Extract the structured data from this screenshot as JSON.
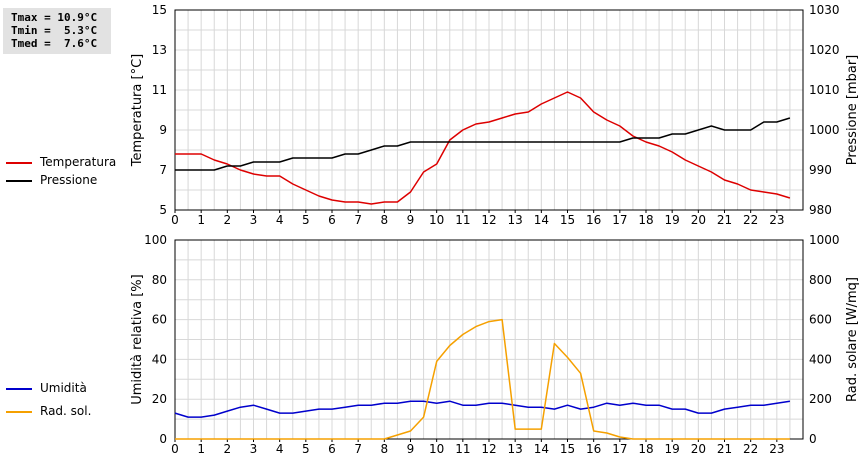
{
  "stats": {
    "tmax": "Tmax = 10.9°C",
    "tmin": "Tmin =  5.3°C",
    "tmed": "Tmed =  7.6°C"
  },
  "legend_top": [
    {
      "label": "Temperatura",
      "color": "#dd0000"
    },
    {
      "label": "Pressione",
      "color": "#000000"
    }
  ],
  "legend_bottom": [
    {
      "label": "Umidità",
      "color": "#0000cc"
    },
    {
      "label": "Rad. sol.",
      "color": "#f5a000"
    }
  ],
  "chart_data": [
    {
      "type": "line",
      "xlim": [
        0,
        24
      ],
      "xticks": [
        "0",
        "1",
        "2",
        "3",
        "4",
        "5",
        "6",
        "7",
        "8",
        "9",
        "10",
        "11",
        "12",
        "13",
        "14",
        "15",
        "16",
        "17",
        "18",
        "19",
        "20",
        "21",
        "22",
        "23"
      ],
      "ylabel": "Temperatura [°C]",
      "ylim": [
        5,
        15
      ],
      "yticks": [
        5,
        7,
        9,
        11,
        13,
        15
      ],
      "y2label": "Pressione [mbar]",
      "y2lim": [
        980,
        1030
      ],
      "y2ticks": [
        980,
        990,
        1000,
        1010,
        1020,
        1030
      ],
      "grid": true,
      "series": [
        {
          "name": "Temperatura",
          "axis": "left",
          "color": "#dd0000",
          "x": [
            0,
            0.5,
            1,
            1.5,
            2,
            2.5,
            3,
            3.5,
            4,
            4.5,
            5,
            5.5,
            6,
            6.5,
            7,
            7.5,
            8,
            8.5,
            9,
            9.5,
            10,
            10.5,
            11,
            11.5,
            12,
            12.5,
            13,
            13.5,
            14,
            14.5,
            15,
            15.5,
            16,
            16.5,
            17,
            17.5,
            18,
            18.5,
            19,
            19.5,
            20,
            20.5,
            21,
            21.5,
            22,
            22.5,
            23,
            23.5
          ],
          "values": [
            7.8,
            7.8,
            7.8,
            7.5,
            7.3,
            7.0,
            6.8,
            6.7,
            6.7,
            6.3,
            6.0,
            5.7,
            5.5,
            5.4,
            5.4,
            5.3,
            5.4,
            5.4,
            5.9,
            6.9,
            7.3,
            8.5,
            9.0,
            9.3,
            9.4,
            9.6,
            9.8,
            9.9,
            10.3,
            10.6,
            10.9,
            10.6,
            9.9,
            9.5,
            9.2,
            8.7,
            8.4,
            8.2,
            7.9,
            7.5,
            7.2,
            6.9,
            6.5,
            6.3,
            6.0,
            5.9,
            5.8,
            5.6
          ]
        },
        {
          "name": "Pressione",
          "axis": "right",
          "color": "#000000",
          "x": [
            0,
            0.5,
            1,
            1.5,
            2,
            2.5,
            3,
            3.5,
            4,
            4.5,
            5,
            5.5,
            6,
            6.5,
            7,
            7.5,
            8,
            8.5,
            9,
            9.5,
            10,
            10.5,
            11,
            11.5,
            12,
            12.5,
            13,
            13.5,
            14,
            14.5,
            15,
            15.5,
            16,
            16.5,
            17,
            17.5,
            18,
            18.5,
            19,
            19.5,
            20,
            20.5,
            21,
            21.5,
            22,
            22.5,
            23,
            23.5
          ],
          "values": [
            990,
            990,
            990,
            990,
            991,
            991,
            992,
            992,
            992,
            993,
            993,
            993,
            993,
            994,
            994,
            995,
            996,
            996,
            997,
            997,
            997,
            997,
            997,
            997,
            997,
            997,
            997,
            997,
            997,
            997,
            997,
            997,
            997,
            997,
            997,
            998,
            998,
            998,
            999,
            999,
            1000,
            1001,
            1000,
            1000,
            1000,
            1002,
            1002,
            1003
          ]
        }
      ]
    },
    {
      "type": "line",
      "xlim": [
        0,
        24
      ],
      "xticks": [
        "0",
        "1",
        "2",
        "3",
        "4",
        "5",
        "6",
        "7",
        "8",
        "9",
        "10",
        "11",
        "12",
        "13",
        "14",
        "15",
        "16",
        "17",
        "18",
        "19",
        "20",
        "21",
        "22",
        "23"
      ],
      "ylabel": "Umidità relativa [%]",
      "ylim": [
        0,
        100
      ],
      "yticks": [
        0,
        20,
        40,
        60,
        80,
        100
      ],
      "y2label": "Rad. solare [W/mq]",
      "y2lim": [
        0,
        1000
      ],
      "y2ticks": [
        0,
        200,
        400,
        600,
        800,
        1000
      ],
      "grid": true,
      "series": [
        {
          "name": "Umidità",
          "axis": "left",
          "color": "#0000cc",
          "x": [
            0,
            0.5,
            1,
            1.5,
            2,
            2.5,
            3,
            3.5,
            4,
            4.5,
            5,
            5.5,
            6,
            6.5,
            7,
            7.5,
            8,
            8.5,
            9,
            9.5,
            10,
            10.5,
            11,
            11.5,
            12,
            12.5,
            13,
            13.5,
            14,
            14.5,
            15,
            15.5,
            16,
            16.5,
            17,
            17.5,
            18,
            18.5,
            19,
            19.5,
            20,
            20.5,
            21,
            21.5,
            22,
            22.5,
            23,
            23.5
          ],
          "values": [
            13,
            11,
            11,
            12,
            14,
            16,
            17,
            15,
            13,
            13,
            14,
            15,
            15,
            16,
            17,
            17,
            18,
            18,
            19,
            19,
            18,
            19,
            17,
            17,
            18,
            18,
            17,
            16,
            16,
            15,
            17,
            15,
            16,
            18,
            17,
            18,
            17,
            17,
            15,
            15,
            13,
            13,
            15,
            16,
            17,
            17,
            18,
            19
          ]
        },
        {
          "name": "Rad. sol.",
          "axis": "right",
          "color": "#f5a000",
          "x": [
            0,
            1,
            2,
            3,
            4,
            5,
            6,
            7,
            8,
            8.5,
            9,
            9.5,
            10,
            10.5,
            11,
            11.5,
            12,
            12.5,
            13,
            13.5,
            14,
            14.5,
            15,
            15.5,
            16,
            16.5,
            17,
            17.5,
            18,
            19,
            20,
            21,
            22,
            23,
            23.5
          ],
          "values": [
            0,
            0,
            0,
            0,
            0,
            0,
            0,
            0,
            0,
            20,
            40,
            110,
            390,
            470,
            525,
            565,
            590,
            600,
            50,
            50,
            50,
            480,
            410,
            330,
            40,
            30,
            10,
            0,
            0,
            0,
            0,
            0,
            0,
            0,
            0
          ]
        }
      ]
    }
  ]
}
